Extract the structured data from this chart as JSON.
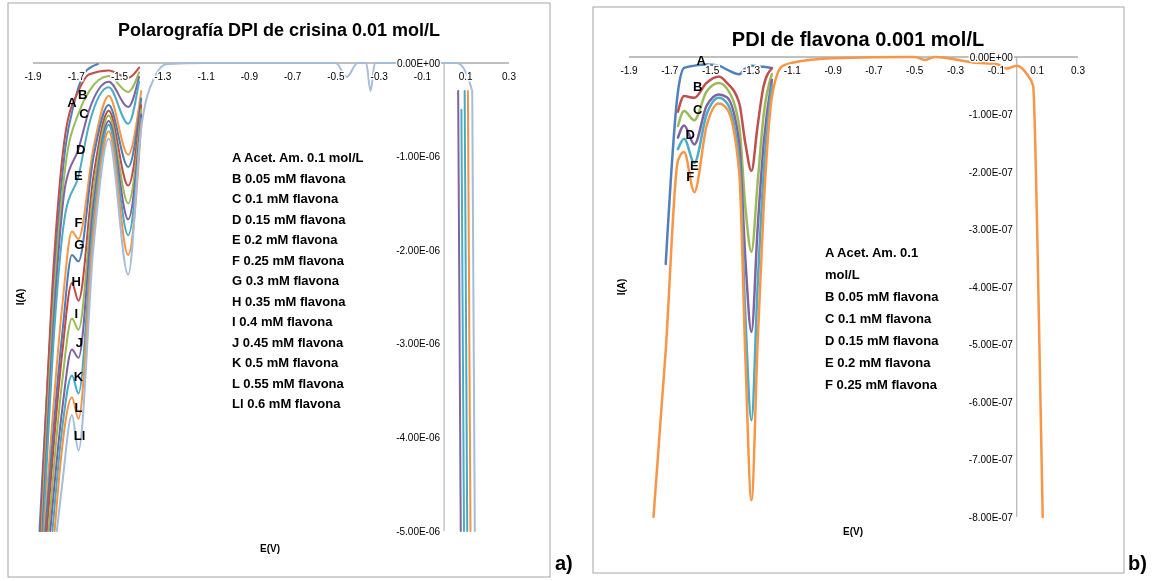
{
  "chart_data": [
    {
      "type": "line",
      "title": "Polarografía DPI de crisina 0.01 mol/L",
      "xlabel": "E(V)",
      "ylabel": "I(A)",
      "xlim": [
        -1.9,
        0.3
      ],
      "xticks": [
        -1.9,
        -1.7,
        -1.5,
        -1.3,
        -1.1,
        -0.9,
        -0.7,
        -0.5,
        -0.3,
        -0.1,
        0.1,
        0.3
      ],
      "ylim": [
        -5e-06,
        0
      ],
      "yticks": [
        {
          "value": 0,
          "label": "0.00E+00"
        },
        {
          "value": -1e-06,
          "label": "-1.00E-06"
        },
        {
          "value": -2e-06,
          "label": "-2.00E-06"
        },
        {
          "value": -3e-06,
          "label": "-3.00E-06"
        },
        {
          "value": -4e-06,
          "label": "-4.00E-06"
        },
        {
          "value": -5e-06,
          "label": "-5.00E-06"
        }
      ],
      "series": [
        {
          "color": "#4f81bd",
          "x": [
            -1.87,
            -1.8,
            -1.75,
            -1.71,
            -1.66,
            -1.6
          ],
          "values": [
            -5e-06,
            -2.2e-06,
            -9e-07,
            -4.3e-07,
            -1e-07,
            -1e-08
          ]
        },
        {
          "color": "#c0504d",
          "x": [
            -1.865,
            -1.8,
            -1.75,
            -1.69,
            -1.64,
            -1.55,
            -1.46,
            -1.41
          ],
          "values": [
            -5e-06,
            -2e-06,
            -7.5e-07,
            -3e-07,
            -1.2e-07,
            -8e-08,
            -1.6e-07,
            -5e-08
          ]
        },
        {
          "color": "#9bbb59",
          "x": [
            -1.86,
            -1.8,
            -1.75,
            -1.69,
            -1.64,
            -1.55,
            -1.46,
            -1.41
          ],
          "values": [
            -5e-06,
            -2.4e-06,
            -1.1e-06,
            -5.4e-07,
            -3e-07,
            -1.4e-07,
            -3.1e-07,
            -1e-07
          ]
        },
        {
          "color": "#8064a2",
          "x": [
            -1.856,
            -1.8,
            -1.75,
            -1.69,
            -1.64,
            -1.55,
            -1.46,
            -1.41,
            -1.1,
            0.065,
            0.077
          ],
          "values": [
            -5e-06,
            -2.6e-06,
            -1.3e-06,
            -9.2e-07,
            -5e-07,
            -2e-07,
            -4.7e-07,
            -1.5e-07,
            null,
            -3e-07,
            -5e-06
          ]
        },
        {
          "color": "#4bacc6",
          "x": [
            -1.852,
            -1.8,
            -1.75,
            -1.69,
            -1.64,
            -1.55,
            -1.46,
            -1.41,
            -1.1,
            0.08,
            0.092
          ],
          "values": [
            -5e-06,
            -2.8e-06,
            -1.6e-06,
            -1.21e-06,
            -6.5e-07,
            -2.6e-07,
            -6.5e-07,
            -2e-07,
            null,
            -5e-07,
            -5e-06
          ]
        },
        {
          "color": "#f79646",
          "x": [
            -1.848,
            -1.765,
            -1.72,
            -1.69,
            -1.62,
            -1.55,
            -1.46,
            -1.4
          ],
          "values": [
            -5e-06,
            -2.6e-06,
            -1.8e-06,
            -1.88e-06,
            -9e-07,
            -3.5e-07,
            -9.8e-07,
            -3e-07
          ]
        },
        {
          "color": "#4a7ebb",
          "x": [
            -1.843,
            -1.765,
            -1.72,
            -1.69,
            -1.62,
            -1.55,
            -1.46,
            -1.4
          ],
          "values": [
            -5e-06,
            -2.9e-06,
            -2.05e-06,
            -2.12e-06,
            -1e-06,
            -4.5e-07,
            -1.11e-06,
            -3.8e-07
          ]
        },
        {
          "color": "#be4b48",
          "x": [
            -1.836,
            -1.765,
            -1.72,
            -1.69,
            -1.62,
            -1.55,
            -1.46,
            -1.4
          ],
          "values": [
            -5e-06,
            -3.1e-06,
            -2.35e-06,
            -2.54e-06,
            -1.2e-06,
            -5.1e-07,
            -1.31e-06,
            -4.5e-07
          ]
        },
        {
          "color": "#98b954",
          "x": [
            -1.828,
            -1.765,
            -1.72,
            -1.69,
            -1.62,
            -1.55,
            -1.46,
            -1.4
          ],
          "values": [
            -5e-06,
            -3.4e-06,
            -2.73e-06,
            -2.85e-06,
            -1.35e-06,
            -5.6e-07,
            -1.5e-06,
            -5e-07
          ]
        },
        {
          "color": "#7d60a0",
          "x": [
            -1.82,
            -1.765,
            -1.72,
            -1.69,
            -1.62,
            -1.55,
            -1.46,
            -1.4
          ],
          "values": [
            -5e-06,
            -3.7e-06,
            -3.06e-06,
            -3.15e-06,
            -1.5e-06,
            -6.2e-07,
            -1.67e-06,
            -5.5e-07
          ]
        },
        {
          "color": "#46aac5",
          "x": [
            -1.81,
            -1.765,
            -1.72,
            -1.69,
            -1.62,
            -1.55,
            -1.46,
            -1.4,
            -1.1,
            0.095,
            0.107
          ],
          "values": [
            -5e-06,
            -3.9e-06,
            -3.34e-06,
            -3.53e-06,
            -1.65e-06,
            -6.6e-07,
            -1.84e-06,
            -6e-07,
            null,
            -3e-07,
            -5e-06
          ]
        },
        {
          "color": "#f69240",
          "x": [
            -1.8,
            -1.765,
            -1.72,
            -1.69,
            -1.62,
            -1.55,
            -1.46,
            -1.4,
            -1.1,
            0.11,
            0.122
          ],
          "values": [
            -5e-06,
            -4.1e-06,
            -3.57e-06,
            -3.8e-06,
            -1.8e-06,
            -7.3e-07,
            -2.05e-06,
            -6.5e-07,
            null,
            -3e-07,
            -5e-06
          ]
        },
        {
          "color": "#a5bcdb",
          "x": [
            -1.79,
            -1.765,
            -1.72,
            -1.69,
            -1.62,
            -1.55,
            -1.46,
            -1.4,
            -1.34,
            -1.28,
            -1.1,
            -0.5,
            -0.45,
            -0.4,
            -0.36,
            -0.34,
            -0.32,
            -0.1,
            0.06,
            0.13,
            0.142
          ],
          "values": [
            -5e-06,
            -4.5e-06,
            -3.76e-06,
            -4.14e-06,
            -1.95e-06,
            -8.1e-07,
            -2.26e-06,
            -7e-07,
            -1.6e-07,
            -1e-08,
            0,
            0,
            -1.5e-07,
            0,
            0,
            -3e-07,
            0,
            0,
            0,
            -3e-07,
            -5e-06
          ]
        }
      ],
      "annotations": [
        {
          "text": "A",
          "x": -1.72,
          "y": -4.3e-07
        },
        {
          "text": "B",
          "x": -1.67,
          "y": -3.5e-07
        },
        {
          "text": "C",
          "x": -1.665,
          "y": -5.5e-07
        },
        {
          "text": "D",
          "x": -1.68,
          "y": -9.4e-07
        },
        {
          "text": "E",
          "x": -1.69,
          "y": -1.21e-06
        },
        {
          "text": "F",
          "x": -1.69,
          "y": -1.72e-06
        },
        {
          "text": "G",
          "x": -1.686,
          "y": -1.95e-06
        },
        {
          "text": "H",
          "x": -1.7,
          "y": -2.35e-06
        },
        {
          "text": "I",
          "x": -1.7,
          "y": -2.69e-06
        },
        {
          "text": "J",
          "x": -1.686,
          "y": -3e-06
        },
        {
          "text": "K",
          "x": -1.69,
          "y": -3.36e-06
        },
        {
          "text": "L",
          "x": -1.69,
          "y": -3.69e-06
        },
        {
          "text": "Ll",
          "x": -1.685,
          "y": -3.99e-06
        },
        "A Acet. Am. 0.1 mol/L",
        "B 0.05 mM flavona",
        "C 0.1 mM flavona",
        "D 0.15 mM flavona",
        "E 0.2 mM flavona",
        "F 0.25 mM flavona",
        "G 0.3 mM flavona",
        "H 0.35 mM flavona",
        "I 0.4 mM flavona",
        "J 0.45 mM flavona",
        "K 0.5 mM flavona",
        "L 0.55 mM flavona",
        "Ll 0.6 mM flavona",
        "a)"
      ]
    },
    {
      "type": "line",
      "title": "PDI de flavona 0.001 mol/L",
      "xlabel": "E(V)",
      "ylabel": "I(A)",
      "xlim": [
        -1.9,
        0.3
      ],
      "xticks": [
        -1.9,
        -1.7,
        -1.5,
        -1.3,
        -1.1,
        -0.9,
        -0.7,
        -0.5,
        -0.3,
        -0.1,
        0.1,
        0.3
      ],
      "ylim": [
        -8e-07,
        0
      ],
      "yticks": [
        {
          "value": 0,
          "label": "0.00E+00"
        },
        {
          "value": -1e-07,
          "label": "-1.00E-07"
        },
        {
          "value": -2e-07,
          "label": "-2.00E-07"
        },
        {
          "value": -3e-07,
          "label": "-3.00E-07"
        },
        {
          "value": -4e-07,
          "label": "-4.00E-07"
        },
        {
          "value": -5e-07,
          "label": "-5.00E-07"
        },
        {
          "value": -6e-07,
          "label": "-6.00E-07"
        },
        {
          "value": -7e-07,
          "label": "-7.00E-07"
        },
        {
          "value": -8e-07,
          "label": "-8.00E-07"
        }
      ],
      "x": [
        -1.78,
        -1.72,
        -1.66,
        -1.63,
        -1.58,
        -1.52,
        -1.46,
        -1.42,
        -1.36,
        -1.33,
        -1.3,
        -1.27,
        -1.24,
        -1.2,
        -1.15,
        -1.1,
        -0.9,
        -0.5,
        -0.45,
        -0.4,
        -0.2,
        -0.1,
        -0.05,
        0,
        0.05,
        0.08,
        0.1,
        0.127
      ],
      "series": [
        {
          "color": "#4f81bd",
          "values": [
            null,
            -3.6e-07,
            -6e-08,
            -1.9e-08,
            -1.5e-08,
            -1.3e-08,
            -1.5e-08,
            -2.2e-08,
            -3e-08,
            -2e-08,
            -1.5e-08,
            -1.6e-08,
            -1.7e-08,
            -1.9e-08,
            null,
            null,
            null,
            null,
            null,
            null,
            null,
            null,
            null,
            null,
            null,
            null,
            null,
            null
          ]
        },
        {
          "color": "#c0504d",
          "values": [
            null,
            null,
            -9.5e-08,
            -6.8e-08,
            -7.1e-08,
            -4.5e-08,
            -3.4e-08,
            -4.5e-08,
            -8e-08,
            -1.5e-07,
            -1.98e-07,
            -1.2e-07,
            -5e-08,
            -2e-08,
            null,
            null,
            null,
            null,
            null,
            null,
            null,
            null,
            null,
            null,
            null,
            null,
            null,
            null
          ]
        },
        {
          "color": "#9bbb59",
          "values": [
            null,
            null,
            -1.2e-07,
            -9.4e-08,
            -1.1e-07,
            -6e-08,
            -4.5e-08,
            -5.5e-08,
            -1.2e-07,
            -2.6e-07,
            -3.39e-07,
            -2.2e-07,
            -1e-07,
            -3e-08,
            null,
            null,
            null,
            null,
            null,
            null,
            null,
            null,
            null,
            null,
            null,
            null,
            null,
            null
          ]
        },
        {
          "color": "#8064a2",
          "values": [
            null,
            null,
            -1.4e-07,
            -1.19e-07,
            -1.52e-07,
            -8.5e-08,
            -6.5e-08,
            -7e-08,
            -1.5e-07,
            -3.5e-07,
            -4.78e-07,
            -3e-07,
            -1.5e-07,
            -4e-08,
            null,
            null,
            null,
            null,
            null,
            null,
            null,
            null,
            null,
            null,
            null,
            null,
            null,
            null
          ]
        },
        {
          "color": "#4bacc6",
          "values": [
            null,
            null,
            -1.6e-07,
            -1.42e-07,
            -1.84e-07,
            -1e-07,
            -7.1e-08,
            -8e-08,
            -1.8e-07,
            -4.5e-07,
            -6.32e-07,
            -4e-07,
            -2e-07,
            -5e-08,
            null,
            null,
            null,
            null,
            null,
            null,
            null,
            null,
            null,
            null,
            null,
            null,
            null,
            null
          ]
        },
        {
          "color": "#f79646",
          "values": [
            -8e-07,
            -5.1e-07,
            -1.8e-07,
            -1.65e-07,
            -2.35e-07,
            -1.2e-07,
            -8.1e-08,
            -9e-08,
            -2e-07,
            -5.2e-07,
            -7.71e-07,
            -5e-07,
            -2.6e-07,
            -7e-08,
            -1.6e-08,
            -1e-08,
            -2e-09,
            0,
            -5e-09,
            0,
            -1e-08,
            -1.2e-08,
            -2e-08,
            -1.5e-08,
            -3e-08,
            -5e-08,
            -3e-07,
            -8e-07
          ]
        }
      ],
      "annotations": [
        {
          "text": "A",
          "x": -1.546,
          "y": -8e-09
        },
        {
          "text": "B",
          "x": -1.564,
          "y": -5.3e-08
        },
        {
          "text": "C",
          "x": -1.564,
          "y": -9.4e-08
        },
        {
          "text": "D",
          "x": -1.6,
          "y": -1.36e-07
        },
        {
          "text": "E",
          "x": -1.58,
          "y": -1.9e-07
        },
        {
          "text": "F",
          "x": -1.6,
          "y": -2.1e-07
        },
        "A Acet. Am. 0.1 mol/L",
        "B 0.05 mM flavona",
        "C 0.1 mM flavona",
        "D 0.15 mM flavona",
        "E 0.2 mM flavona",
        "F 0.25 mM flavona",
        "b)"
      ]
    }
  ]
}
